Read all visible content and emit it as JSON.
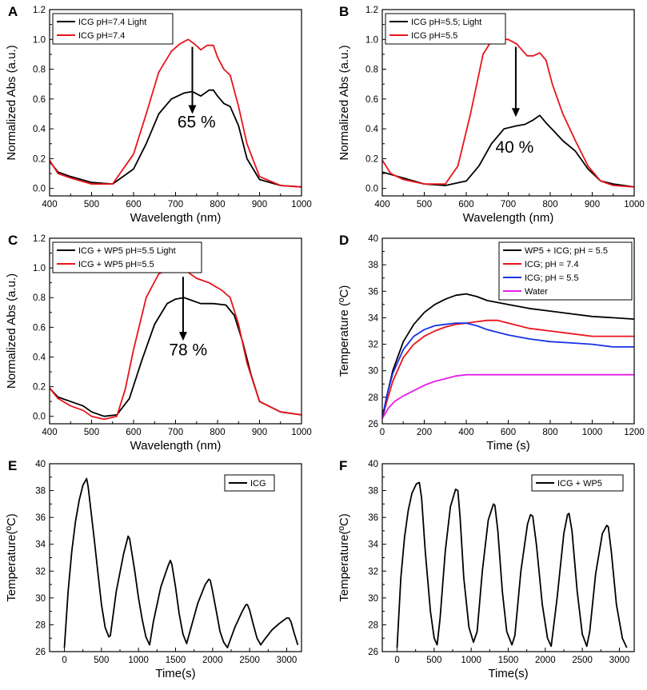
{
  "figure_title": "",
  "chart_data": [
    {
      "panel": "A",
      "type": "line",
      "xlabel": "Wavelength (nm)",
      "ylabel": "Normalized Abs (a.u.)",
      "xlim": [
        400,
        1000
      ],
      "ylim": [
        -0.05,
        1.2
      ],
      "xticks": [
        400,
        500,
        600,
        700,
        800,
        900,
        1000
      ],
      "yticks": [
        0.0,
        0.2,
        0.4,
        0.6,
        0.8,
        1.0,
        1.2
      ],
      "legend_position": "top-left",
      "annotation": {
        "text": "65 %",
        "x": 750,
        "y": 0.41
      },
      "arrow": {
        "x": 740,
        "y_from": 0.95,
        "y_to": 0.5
      },
      "series": [
        {
          "name": "ICG pH=7.4 Light",
          "color": "#000000",
          "x": [
            400,
            420,
            450,
            500,
            550,
            600,
            630,
            660,
            690,
            720,
            740,
            760,
            780,
            790,
            800,
            815,
            830,
            850,
            870,
            900,
            950,
            1000
          ],
          "y": [
            0.18,
            0.11,
            0.08,
            0.04,
            0.03,
            0.13,
            0.3,
            0.5,
            0.6,
            0.64,
            0.65,
            0.62,
            0.66,
            0.66,
            0.62,
            0.57,
            0.55,
            0.42,
            0.2,
            0.06,
            0.02,
            0.01
          ]
        },
        {
          "name": "ICG pH=7.4",
          "color": "#e8141c",
          "x": [
            400,
            420,
            450,
            500,
            550,
            600,
            630,
            660,
            690,
            710,
            730,
            745,
            760,
            775,
            790,
            800,
            815,
            830,
            850,
            870,
            900,
            950,
            1000
          ],
          "y": [
            0.19,
            0.1,
            0.07,
            0.03,
            0.03,
            0.23,
            0.5,
            0.78,
            0.92,
            0.97,
            1.0,
            0.97,
            0.93,
            0.96,
            0.96,
            0.88,
            0.8,
            0.76,
            0.55,
            0.3,
            0.08,
            0.02,
            0.01
          ]
        }
      ]
    },
    {
      "panel": "B",
      "type": "line",
      "xlabel": "Wavelength (nm)",
      "ylabel": "Normalized Abs (a.u.)",
      "xlim": [
        400,
        1000
      ],
      "ylim": [
        -0.05,
        1.2
      ],
      "xticks": [
        400,
        500,
        600,
        700,
        800,
        900,
        1000
      ],
      "yticks": [
        0.0,
        0.2,
        0.4,
        0.6,
        0.8,
        1.0,
        1.2
      ],
      "legend_position": "top-left",
      "annotation": {
        "text": "40 %",
        "x": 715,
        "y": 0.24
      },
      "arrow": {
        "x": 718,
        "y_from": 0.95,
        "y_to": 0.48
      },
      "series": [
        {
          "name": "ICG pH=5.5; Light",
          "color": "#000000",
          "x": [
            400,
            450,
            500,
            550,
            600,
            630,
            660,
            690,
            720,
            740,
            760,
            775,
            790,
            810,
            830,
            860,
            890,
            920,
            950,
            1000
          ],
          "y": [
            0.11,
            0.07,
            0.03,
            0.02,
            0.05,
            0.15,
            0.3,
            0.4,
            0.42,
            0.43,
            0.46,
            0.49,
            0.44,
            0.38,
            0.32,
            0.25,
            0.13,
            0.05,
            0.03,
            0.01
          ]
        },
        {
          "name": "ICG pH=5.5",
          "color": "#e8141c",
          "x": [
            400,
            420,
            450,
            500,
            550,
            580,
            610,
            640,
            660,
            680,
            700,
            720,
            745,
            760,
            775,
            790,
            805,
            830,
            860,
            890,
            920,
            950,
            1000
          ],
          "y": [
            0.19,
            0.1,
            0.06,
            0.03,
            0.03,
            0.15,
            0.5,
            0.9,
            0.99,
            1.0,
            1.0,
            0.97,
            0.89,
            0.89,
            0.91,
            0.86,
            0.7,
            0.5,
            0.32,
            0.15,
            0.05,
            0.02,
            0.01
          ]
        }
      ]
    },
    {
      "panel": "C",
      "type": "line",
      "xlabel": "Wavelength (nm)",
      "ylabel": "Normalized Abs (a.u.)",
      "xlim": [
        400,
        1000
      ],
      "ylim": [
        -0.05,
        1.2
      ],
      "xticks": [
        400,
        500,
        600,
        700,
        800,
        900,
        1000
      ],
      "yticks": [
        0.0,
        0.2,
        0.4,
        0.6,
        0.8,
        1.0,
        1.2
      ],
      "legend_position": "top-left",
      "annotation": {
        "text": "78 %",
        "x": 730,
        "y": 0.41
      },
      "arrow": {
        "x": 718,
        "y_from": 0.94,
        "y_to": 0.51
      },
      "series": [
        {
          "name": "ICG + WP5 pH=5.5 Light",
          "color": "#000000",
          "x": [
            400,
            420,
            450,
            480,
            500,
            530,
            560,
            590,
            620,
            650,
            680,
            700,
            720,
            740,
            760,
            790,
            820,
            840,
            860,
            880,
            900,
            950,
            1000
          ],
          "y": [
            0.19,
            0.13,
            0.1,
            0.07,
            0.03,
            0.0,
            0.01,
            0.12,
            0.38,
            0.62,
            0.76,
            0.79,
            0.8,
            0.78,
            0.76,
            0.76,
            0.75,
            0.68,
            0.5,
            0.28,
            0.1,
            0.03,
            0.01
          ]
        },
        {
          "name": "ICG + WP5 pH=5.5",
          "color": "#e8141c",
          "x": [
            400,
            420,
            450,
            480,
            500,
            530,
            560,
            580,
            600,
            630,
            660,
            690,
            710,
            730,
            750,
            780,
            810,
            830,
            850,
            870,
            900,
            950,
            1000
          ],
          "y": [
            0.19,
            0.12,
            0.07,
            0.04,
            0.0,
            -0.02,
            0.0,
            0.18,
            0.45,
            0.8,
            0.96,
            1.0,
            1.0,
            0.97,
            0.93,
            0.9,
            0.85,
            0.8,
            0.62,
            0.36,
            0.1,
            0.03,
            0.01
          ]
        }
      ]
    },
    {
      "panel": "D",
      "type": "line",
      "xlabel": "Time (s)",
      "ylabel": "Temperature (ºC)",
      "xlim": [
        0,
        1200
      ],
      "ylim": [
        26,
        40
      ],
      "xticks": [
        0,
        200,
        400,
        600,
        800,
        1000,
        1200
      ],
      "yticks": [
        26,
        28,
        30,
        32,
        34,
        36,
        38,
        40
      ],
      "legend_position": "top-right",
      "series": [
        {
          "name": "WP5 + ICG; pH = 5.5",
          "color": "#000000",
          "x": [
            0,
            20,
            50,
            100,
            150,
            200,
            250,
            300,
            350,
            400,
            450,
            500,
            600,
            700,
            800,
            900,
            1000,
            1100,
            1200
          ],
          "y": [
            26.4,
            28.0,
            30.0,
            32.2,
            33.5,
            34.4,
            35.0,
            35.4,
            35.7,
            35.8,
            35.6,
            35.3,
            35.0,
            34.7,
            34.5,
            34.3,
            34.1,
            34.0,
            33.9
          ]
        },
        {
          "name": "ICG; pH = 7.4",
          "color": "#e8141c",
          "x": [
            0,
            20,
            50,
            100,
            150,
            200,
            250,
            300,
            350,
            400,
            450,
            500,
            550,
            600,
            700,
            800,
            900,
            1000,
            1050,
            1100,
            1200
          ],
          "y": [
            26.4,
            27.6,
            29.2,
            31.0,
            32.0,
            32.6,
            33.0,
            33.3,
            33.5,
            33.6,
            33.7,
            33.8,
            33.8,
            33.6,
            33.2,
            33.0,
            32.8,
            32.6,
            32.6,
            32.6,
            32.6
          ]
        },
        {
          "name": "ICG; pH = 5.5",
          "color": "#1632e6",
          "x": [
            0,
            20,
            50,
            100,
            150,
            200,
            250,
            300,
            350,
            400,
            450,
            500,
            600,
            700,
            800,
            900,
            1000,
            1100,
            1200
          ],
          "y": [
            26.4,
            28.0,
            29.8,
            31.6,
            32.6,
            33.1,
            33.4,
            33.5,
            33.6,
            33.6,
            33.4,
            33.1,
            32.7,
            32.4,
            32.2,
            32.1,
            32.0,
            31.8,
            31.8
          ]
        },
        {
          "name": "Water",
          "color": "#e61ee6",
          "x": [
            0,
            30,
            60,
            100,
            150,
            200,
            250,
            300,
            350,
            400,
            420,
            500,
            700,
            900,
            1100,
            1200
          ],
          "y": [
            26.4,
            27.2,
            27.7,
            28.1,
            28.5,
            28.9,
            29.2,
            29.4,
            29.6,
            29.7,
            29.7,
            29.7,
            29.7,
            29.7,
            29.7,
            29.7
          ]
        }
      ]
    },
    {
      "panel": "E",
      "type": "line",
      "xlabel": "Time(s)",
      "ylabel": "Temperature(ºC)",
      "xlim": [
        -200,
        3200
      ],
      "ylim": [
        26,
        40
      ],
      "xticks": [
        0,
        500,
        1000,
        1500,
        2000,
        2500,
        3000
      ],
      "yticks": [
        26,
        28,
        30,
        32,
        34,
        36,
        38,
        40
      ],
      "legend_position": "top-right",
      "series": [
        {
          "name": "ICG",
          "color": "#000000",
          "x": [
            0,
            50,
            100,
            150,
            200,
            250,
            300,
            320,
            400,
            450,
            500,
            550,
            600,
            620,
            700,
            800,
            860,
            880,
            950,
            1000,
            1050,
            1100,
            1150,
            1200,
            1300,
            1400,
            1430,
            1450,
            1500,
            1550,
            1600,
            1650,
            1700,
            1800,
            1900,
            1950,
            1970,
            2000,
            2050,
            2100,
            2150,
            2200,
            2300,
            2400,
            2450,
            2470,
            2500,
            2550,
            2600,
            2650,
            2700,
            2800,
            2900,
            3000,
            3030,
            3060,
            3100,
            3150
          ],
          "y": [
            26.3,
            30.5,
            33.5,
            35.7,
            37.3,
            38.4,
            38.9,
            38.3,
            34.5,
            32.0,
            29.5,
            27.8,
            27.1,
            27.2,
            30.5,
            33.3,
            34.6,
            34.4,
            32.0,
            30.0,
            28.4,
            27.1,
            26.5,
            28.2,
            30.8,
            32.4,
            32.8,
            32.5,
            30.8,
            28.8,
            27.3,
            26.6,
            27.6,
            29.6,
            31.0,
            31.4,
            31.3,
            30.5,
            29.0,
            27.5,
            26.7,
            26.3,
            27.8,
            29.0,
            29.5,
            29.5,
            29.1,
            28.0,
            27.0,
            26.5,
            26.9,
            27.6,
            28.1,
            28.5,
            28.5,
            28.2,
            27.4,
            26.5
          ]
        }
      ]
    },
    {
      "panel": "F",
      "type": "line",
      "xlabel": "Time(s)",
      "ylabel": "Temperature(ºC)",
      "xlim": [
        -200,
        3200
      ],
      "ylim": [
        26,
        40
      ],
      "xticks": [
        0,
        500,
        1000,
        1500,
        2000,
        2500,
        3000
      ],
      "yticks": [
        26,
        28,
        30,
        32,
        34,
        36,
        38,
        40
      ],
      "legend_position": "top-right",
      "series": [
        {
          "name": "ICG + WP5",
          "color": "#000000",
          "x": [
            0,
            50,
            100,
            150,
            200,
            260,
            300,
            330,
            380,
            450,
            500,
            540,
            580,
            650,
            720,
            790,
            820,
            850,
            900,
            970,
            1030,
            1080,
            1150,
            1230,
            1300,
            1320,
            1360,
            1420,
            1480,
            1550,
            1590,
            1670,
            1760,
            1800,
            1830,
            1880,
            1960,
            2030,
            2080,
            2160,
            2250,
            2300,
            2320,
            2360,
            2430,
            2500,
            2560,
            2600,
            2680,
            2770,
            2830,
            2850,
            2890,
            2960,
            3040,
            3100
          ],
          "y": [
            26.3,
            31.5,
            34.5,
            36.5,
            37.8,
            38.5,
            38.6,
            37.5,
            33.5,
            29.0,
            27.0,
            26.5,
            28.5,
            33.5,
            36.8,
            38.1,
            38.0,
            36.0,
            31.5,
            27.8,
            26.7,
            27.5,
            32.0,
            35.8,
            37.0,
            36.9,
            35.0,
            30.5,
            27.5,
            26.5,
            27.2,
            32.0,
            35.5,
            36.2,
            36.1,
            34.0,
            29.5,
            27.0,
            26.4,
            30.0,
            34.8,
            36.2,
            36.3,
            35.0,
            30.5,
            27.3,
            26.4,
            27.5,
            31.8,
            34.8,
            35.4,
            35.3,
            33.5,
            29.5,
            27.0,
            26.3
          ]
        }
      ]
    }
  ]
}
